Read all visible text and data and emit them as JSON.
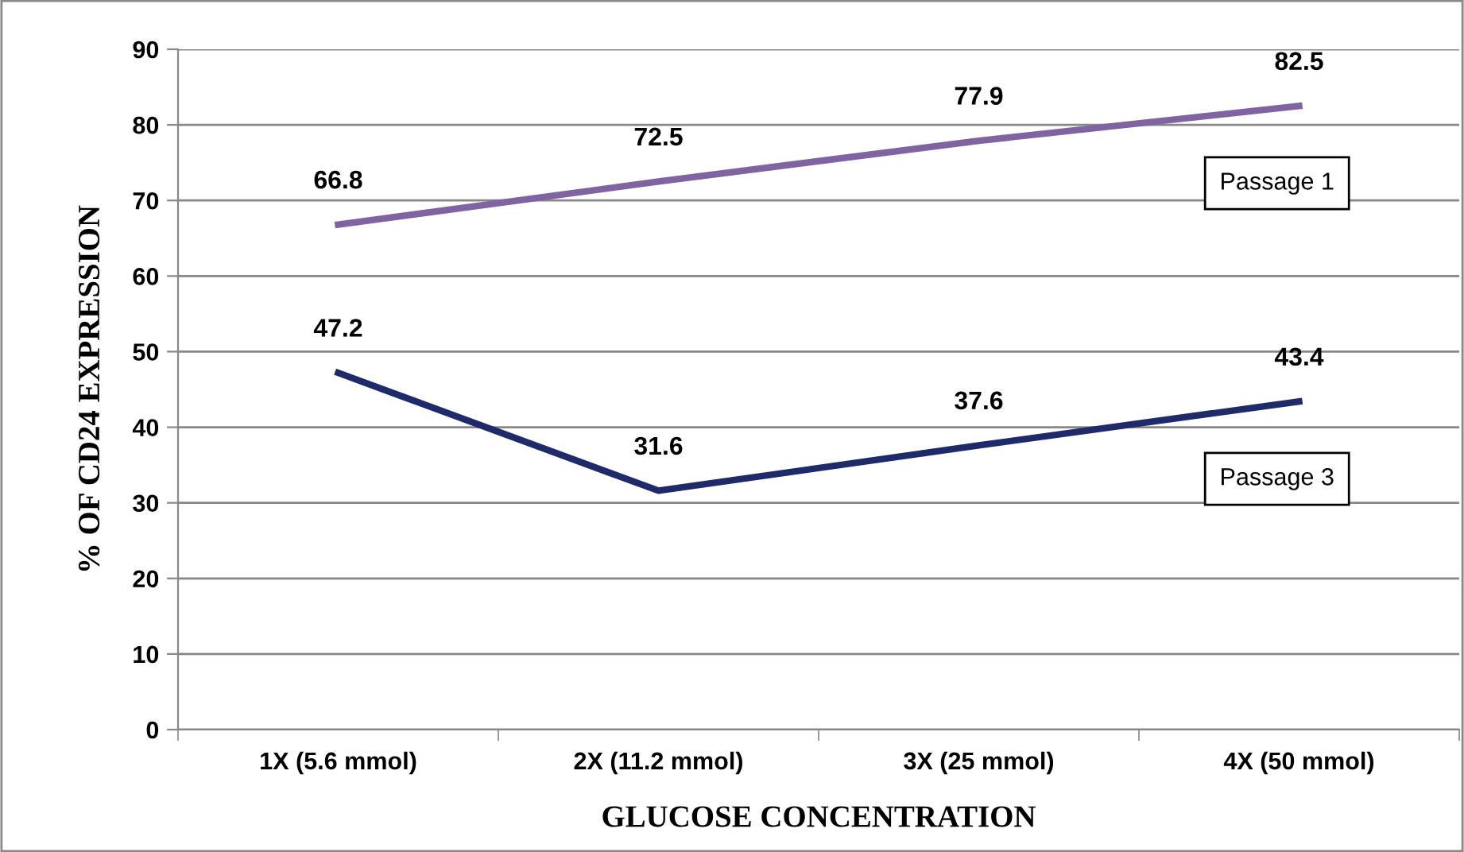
{
  "chart_data": {
    "type": "line",
    "xlabel": "GLUCOSE CONCENTRATION",
    "ylabel": "% OF CD24 EXPRESSION",
    "categories": [
      "1X (5.6 mmol)",
      "2X (11.2 mmol)",
      "3X (25 mmol)",
      "4X (50 mmol)"
    ],
    "series": [
      {
        "name": "Passage 1",
        "color": "#8064a2",
        "values": [
          66.8,
          72.5,
          77.9,
          82.5
        ]
      },
      {
        "name": "Passage 3",
        "color": "#1f2a6b",
        "values": [
          47.2,
          31.6,
          37.6,
          43.4
        ]
      }
    ],
    "ylim": [
      0,
      90
    ],
    "yticks": [
      0,
      10,
      20,
      30,
      40,
      50,
      60,
      70,
      80,
      90
    ],
    "grid": "y",
    "data_labels": true,
    "legend": false,
    "marker": "none",
    "line_style": "solid"
  }
}
